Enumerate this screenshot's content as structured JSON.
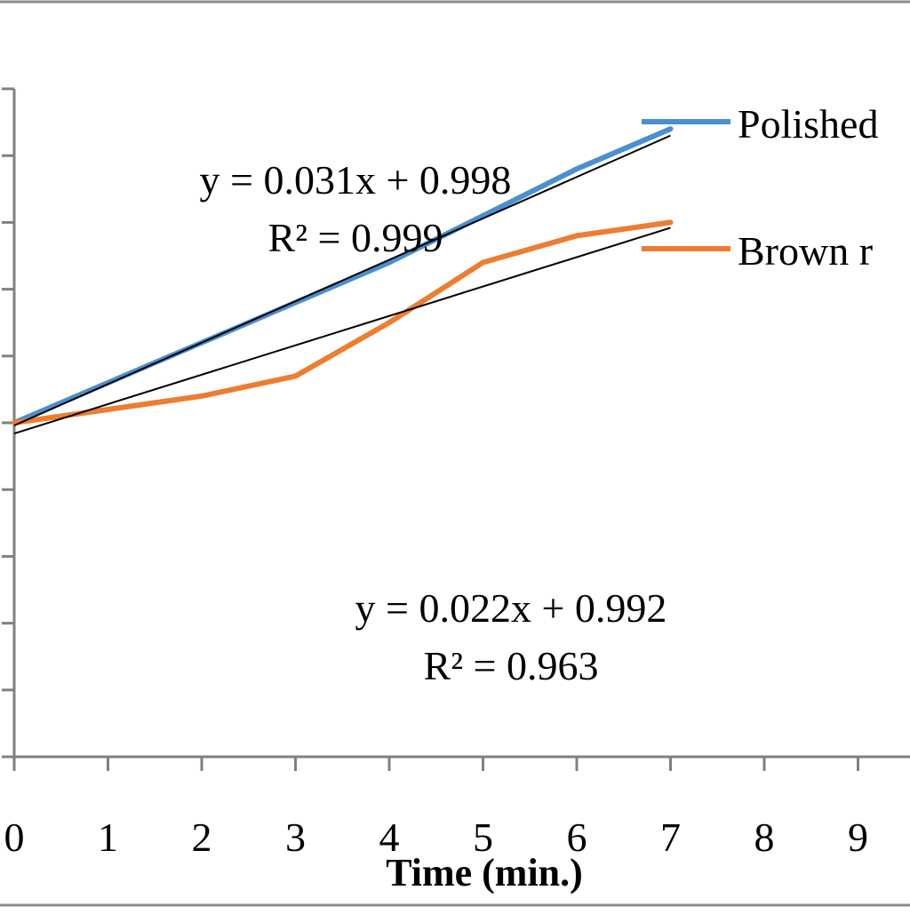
{
  "chart_data": {
    "type": "line",
    "xlabel": "Time (min.)",
    "ylabel": "",
    "xlim": [
      0,
      9.5
    ],
    "ylim": [
      0.75,
      1.25
    ],
    "x_ticks": [
      0,
      1,
      2,
      3,
      4,
      5,
      6,
      7,
      8,
      9
    ],
    "y_ticks": [
      0.75,
      0.8,
      0.85,
      0.9,
      0.95,
      1.0,
      1.05,
      1.1,
      1.15,
      1.2,
      1.25
    ],
    "grid": false,
    "legend_position": "top-right",
    "series": [
      {
        "name": "Polished",
        "color": "#4a8fd0",
        "x": [
          0,
          1,
          2,
          3,
          4,
          5,
          6,
          7
        ],
        "y": [
          1.0,
          1.03,
          1.06,
          1.09,
          1.12,
          1.155,
          1.19,
          1.22
        ]
      },
      {
        "name": "Brown r",
        "color": "#ed7d31",
        "x": [
          0,
          1,
          2,
          3,
          4,
          5,
          6,
          7
        ],
        "y": [
          1.0,
          1.01,
          1.02,
          1.035,
          1.075,
          1.12,
          1.14,
          1.15
        ]
      }
    ],
    "trendlines": [
      {
        "slope": 0.031,
        "intercept": 0.998,
        "x_range": [
          0,
          7
        ],
        "color": "#000000"
      },
      {
        "slope": 0.022,
        "intercept": 0.992,
        "x_range": [
          0,
          7
        ],
        "color": "#000000"
      }
    ],
    "annotations": [
      {
        "line1": "y = 0.031x + 0.998",
        "line2": "R² = 0.999"
      },
      {
        "line1": "y = 0.022x + 0.992",
        "line2": "R² = 0.963"
      }
    ]
  }
}
